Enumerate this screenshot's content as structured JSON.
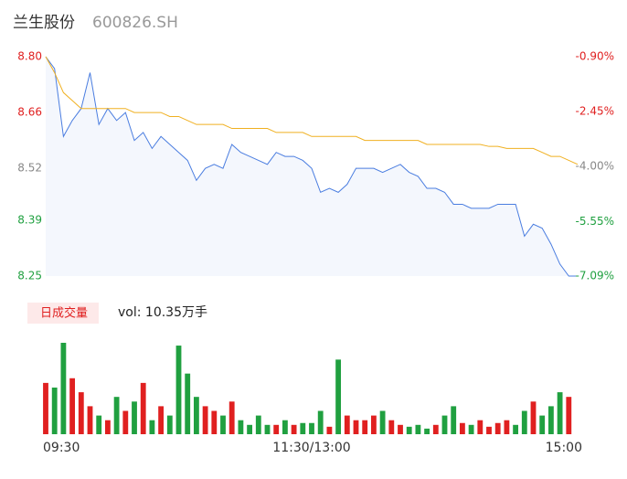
{
  "chart_data": [
    {
      "type": "line",
      "title": "兰生股份",
      "subtitle": "600826.SH",
      "x": [
        0,
        4,
        8,
        12,
        16,
        20,
        24,
        28,
        32,
        36,
        40,
        44,
        48,
        52,
        56,
        60,
        64,
        68,
        72,
        76,
        80,
        84,
        88,
        92,
        96,
        100,
        104,
        108,
        112,
        116,
        120,
        124,
        128,
        132,
        136,
        140,
        144,
        148,
        152,
        156,
        160,
        164,
        168,
        172,
        176,
        180,
        184,
        188,
        192,
        196,
        200,
        204,
        208,
        212,
        216,
        220,
        224,
        228,
        232,
        236,
        240
      ],
      "xlim": [
        0,
        240
      ],
      "series": [
        {
          "name": "price",
          "color": "#4a7de0",
          "values": [
            8.8,
            8.77,
            8.6,
            8.64,
            8.67,
            8.76,
            8.63,
            8.67,
            8.64,
            8.66,
            8.59,
            8.61,
            8.57,
            8.6,
            8.58,
            8.56,
            8.54,
            8.49,
            8.52,
            8.53,
            8.52,
            8.58,
            8.56,
            8.55,
            8.54,
            8.53,
            8.56,
            8.55,
            8.55,
            8.54,
            8.52,
            8.46,
            8.47,
            8.46,
            8.48,
            8.52,
            8.52,
            8.52,
            8.51,
            8.52,
            8.53,
            8.51,
            8.5,
            8.47,
            8.47,
            8.46,
            8.43,
            8.43,
            8.42,
            8.42,
            8.42,
            8.43,
            8.43,
            8.43,
            8.35,
            8.38,
            8.37,
            8.33,
            8.28,
            8.25,
            8.25
          ]
        },
        {
          "name": "avg",
          "color": "#f0b020",
          "values": [
            8.8,
            8.76,
            8.71,
            8.69,
            8.67,
            8.67,
            8.67,
            8.67,
            8.67,
            8.67,
            8.66,
            8.66,
            8.66,
            8.66,
            8.65,
            8.65,
            8.64,
            8.63,
            8.63,
            8.63,
            8.63,
            8.62,
            8.62,
            8.62,
            8.62,
            8.62,
            8.61,
            8.61,
            8.61,
            8.61,
            8.6,
            8.6,
            8.6,
            8.6,
            8.6,
            8.6,
            8.59,
            8.59,
            8.59,
            8.59,
            8.59,
            8.59,
            8.59,
            8.58,
            8.58,
            8.58,
            8.58,
            8.58,
            8.58,
            8.58,
            8.575,
            8.575,
            8.57,
            8.57,
            8.57,
            8.57,
            8.56,
            8.55,
            8.55,
            8.54,
            8.53
          ]
        }
      ],
      "ylim": [
        8.25,
        8.8
      ],
      "yticks": [
        {
          "value": 8.8,
          "label": "8.80"
        },
        {
          "value": 8.66,
          "label": "8.66"
        },
        {
          "value": 8.52,
          "label": "8.52"
        },
        {
          "value": 8.39,
          "label": "8.39"
        },
        {
          "value": 8.25,
          "label": "8.25"
        }
      ],
      "ytick_colors": [
        "#e02020",
        "#e02020",
        "#888888",
        "#20a040",
        "#20a040"
      ],
      "y2lim": [
        -7.09,
        -0.9
      ],
      "y2ticks": [
        {
          "value": -0.9,
          "label": "-0.90%"
        },
        {
          "value": -2.45,
          "label": "-2.45%"
        },
        {
          "value": -4.0,
          "label": "-4.00%"
        },
        {
          "value": -5.55,
          "label": "-5.55%"
        },
        {
          "value": -7.09,
          "label": "-7.09%"
        }
      ],
      "y2tick_colors": [
        "#e02020",
        "#e02020",
        "#888888",
        "#20a040",
        "#20a040"
      ]
    },
    {
      "type": "bar",
      "legend": "日成交量",
      "annotation": "vol: 10.35万手",
      "x": [
        0,
        4,
        8,
        12,
        16,
        20,
        24,
        28,
        32,
        36,
        40,
        44,
        48,
        52,
        56,
        60,
        64,
        68,
        72,
        76,
        80,
        84,
        88,
        92,
        96,
        100,
        104,
        108,
        112,
        116,
        120,
        124,
        128,
        132,
        136,
        140,
        144,
        148,
        152,
        156,
        160,
        164,
        168,
        172,
        176,
        180,
        184,
        188,
        192,
        196,
        200,
        204,
        208,
        212,
        216,
        220,
        224,
        228,
        232,
        236
      ],
      "xlim": [
        0,
        240
      ],
      "xticks": [
        {
          "value": 0,
          "label": "09:30"
        },
        {
          "value": 120,
          "label": "11:30/13:00"
        },
        {
          "value": 240,
          "label": "15:00"
        }
      ],
      "values": [
        55,
        50,
        98,
        60,
        45,
        30,
        20,
        15,
        40,
        25,
        35,
        55,
        15,
        30,
        20,
        95,
        65,
        40,
        30,
        25,
        20,
        35,
        15,
        10,
        20,
        10,
        10,
        15,
        10,
        12,
        12,
        25,
        8,
        80,
        20,
        15,
        15,
        20,
        25,
        15,
        10,
        8,
        10,
        6,
        10,
        20,
        30,
        12,
        10,
        15,
        8,
        12,
        15,
        10,
        25,
        35,
        20,
        30,
        45,
        40
      ],
      "colors": [
        "#e02020",
        "#20a040",
        "#20a040",
        "#e02020",
        "#e02020",
        "#e02020",
        "#20a040",
        "#e02020",
        "#20a040",
        "#e02020",
        "#20a040",
        "#e02020",
        "#20a040",
        "#e02020",
        "#20a040",
        "#20a040",
        "#20a040",
        "#20a040",
        "#e02020",
        "#e02020",
        "#20a040",
        "#e02020",
        "#20a040",
        "#20a040",
        "#20a040",
        "#20a040",
        "#e02020",
        "#20a040",
        "#e02020",
        "#20a040",
        "#20a040",
        "#20a040",
        "#e02020",
        "#20a040",
        "#e02020",
        "#e02020",
        "#e02020",
        "#e02020",
        "#20a040",
        "#e02020",
        "#e02020",
        "#20a040",
        "#20a040",
        "#20a040",
        "#e02020",
        "#20a040",
        "#20a040",
        "#e02020",
        "#20a040",
        "#e02020",
        "#e02020",
        "#e02020",
        "#e02020",
        "#20a040",
        "#20a040",
        "#e02020",
        "#20a040",
        "#20a040",
        "#20a040",
        "#e02020"
      ]
    }
  ]
}
